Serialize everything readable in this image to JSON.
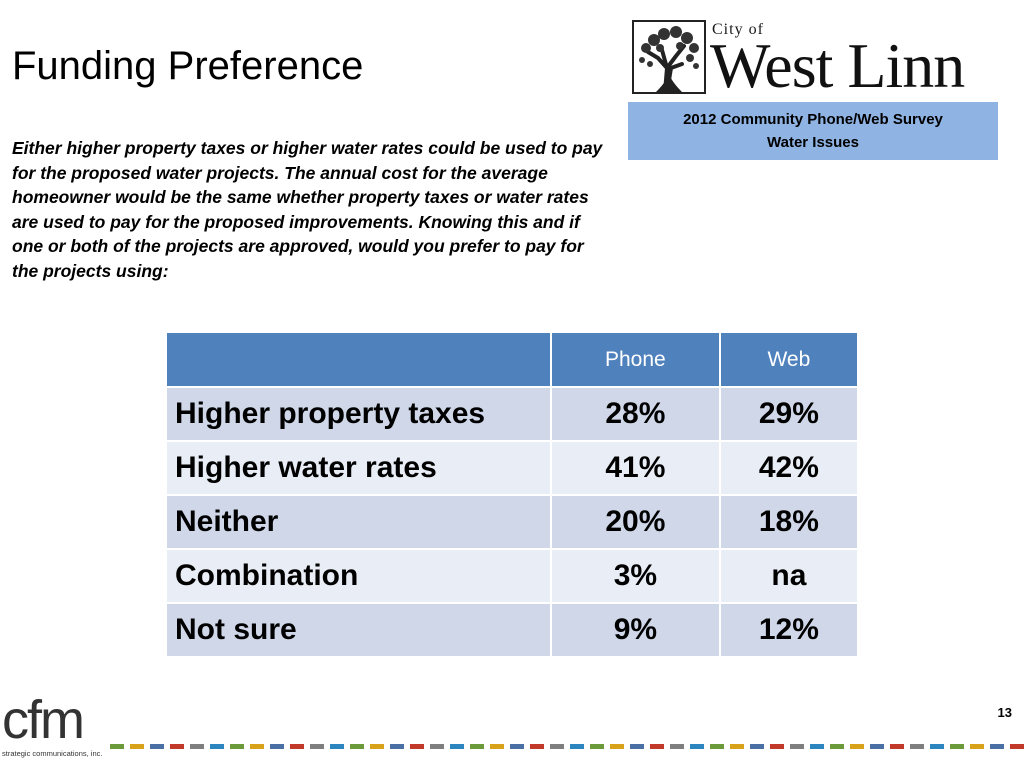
{
  "slide": {
    "title": "Funding Preference",
    "question": "Either higher property taxes or higher water rates could be used to pay for the proposed water projects. The annual cost for the average homeowner would be the same whether property taxes or water rates are used to pay for the proposed improvements. Knowing this and if one or both of the projects are approved, would you prefer to pay for the projects using:",
    "page_number": "13"
  },
  "logo": {
    "city_of": "City of",
    "name": "West Linn",
    "icon": "tree-icon"
  },
  "survey_box": {
    "line1": "2012 Community Phone/Web Survey",
    "line2": "Water Issues"
  },
  "table": {
    "headers": [
      "",
      "Phone",
      "Web"
    ],
    "rows": [
      {
        "label": "Higher property taxes",
        "phone": "28%",
        "web": "29%"
      },
      {
        "label": "Higher water rates",
        "phone": "41%",
        "web": "42%"
      },
      {
        "label": "Neither",
        "phone": "20%",
        "web": "18%"
      },
      {
        "label": "Combination",
        "phone": "3%",
        "web": "na"
      },
      {
        "label": "Not sure",
        "phone": "9%",
        "web": "12%"
      }
    ]
  },
  "footer": {
    "brand": "cfm",
    "tagline": "strategic communications, inc."
  },
  "colors": {
    "header_blue": "#4f81bd",
    "row_dark": "#cfd7e9",
    "row_light": "#e9edf5",
    "survey_box": "#8fb3e3"
  }
}
